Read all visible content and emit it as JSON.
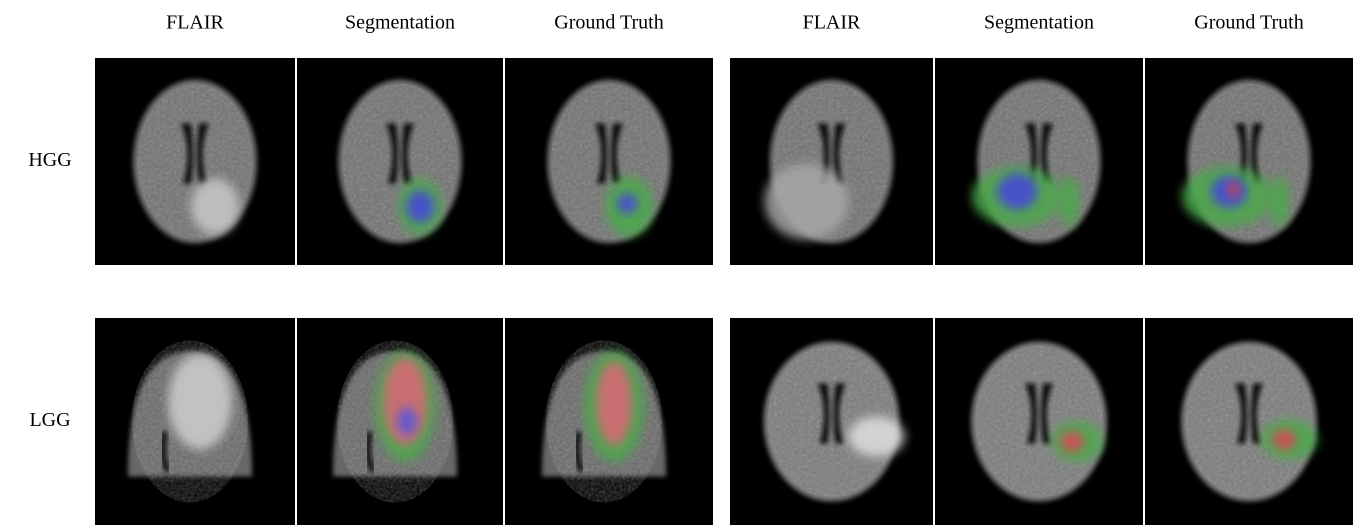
{
  "columns": [
    "FLAIR",
    "Segmentation",
    "Ground Truth",
    "FLAIR",
    "Segmentation",
    "Ground Truth"
  ],
  "rows": [
    "HGG",
    "LGG"
  ]
}
